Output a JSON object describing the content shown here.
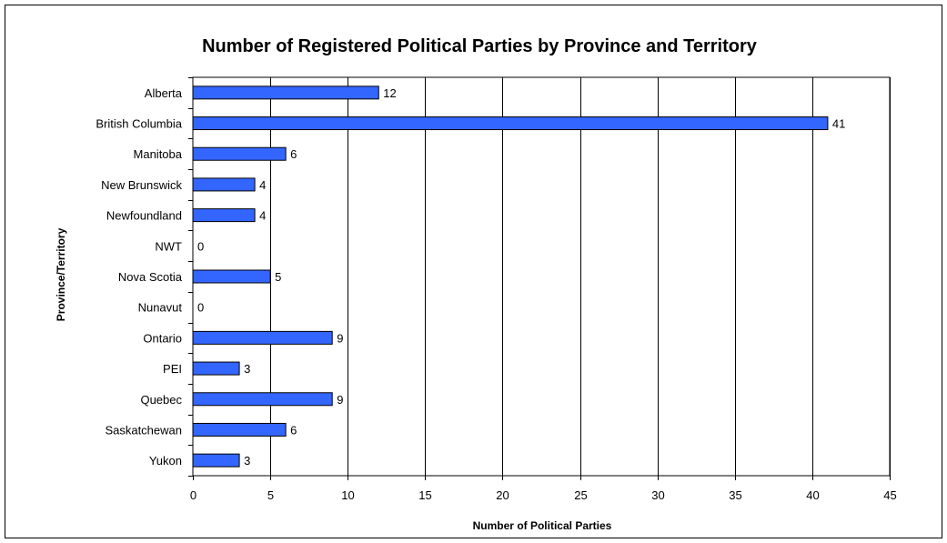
{
  "chart_data": {
    "type": "bar",
    "orientation": "horizontal",
    "title": "Number of Registered Political Parties by Province and Territory",
    "xlabel": "Number of Political Parties",
    "ylabel": "Province/Territory",
    "categories": [
      "Alberta",
      "British Columbia",
      "Manitoba",
      "New Brunswick",
      "Newfoundland",
      "NWT",
      "Nova Scotia",
      "Nunavut",
      "Ontario",
      "PEI",
      "Quebec",
      "Saskatchewan",
      "Yukon"
    ],
    "values": [
      12,
      41,
      6,
      4,
      4,
      0,
      5,
      0,
      9,
      3,
      9,
      6,
      3
    ],
    "xlim": [
      0,
      45
    ],
    "xticks": [
      0,
      5,
      10,
      15,
      20,
      25,
      30,
      35,
      40,
      45
    ],
    "grid": "vertical",
    "legend": "none",
    "colors": {
      "bar": "#3366FF",
      "bar_outline": "#000000",
      "grid": "#000000"
    }
  }
}
